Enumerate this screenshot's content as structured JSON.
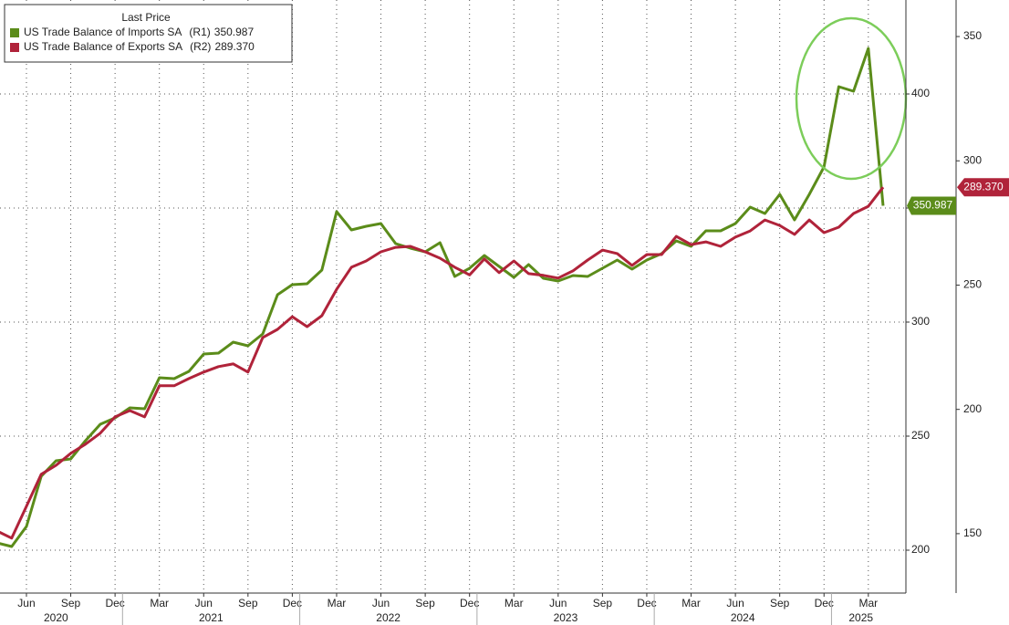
{
  "chart_data": {
    "type": "line",
    "legend_title": "Last Price",
    "categories": [
      null,
      null,
      "Jun",
      null,
      null,
      "Sep",
      null,
      null,
      "Dec",
      null,
      null,
      "Mar",
      null,
      null,
      "Jun",
      null,
      null,
      "Sep",
      null,
      null,
      "Dec",
      null,
      null,
      "Mar",
      null,
      null,
      "Jun",
      null,
      null,
      "Sep",
      null,
      null,
      "Dec",
      null,
      null,
      "Mar",
      null,
      null,
      "Jun",
      null,
      null,
      "Sep",
      null,
      null,
      "Dec",
      null,
      null,
      "Mar",
      null,
      null,
      "Jun",
      null,
      null,
      "Sep",
      null,
      null,
      "Dec",
      null,
      null,
      "Mar",
      null
    ],
    "years": [
      "2020",
      "2021",
      "2022",
      "2023",
      "2024",
      "2025"
    ],
    "series": [
      {
        "name": "US Trade Balance of Imports SA",
        "axis_name": "(R1)",
        "color": "#5b8c1a",
        "axis": "y",
        "values": [
          203.2,
          201.6,
          210.4,
          232.4,
          239.2,
          240,
          248,
          255.2,
          258,
          262.4,
          262,
          275.6,
          275.2,
          278.4,
          286,
          286.4,
          291.2,
          289.6,
          294.8,
          312,
          316.4,
          316.8,
          322.8,
          348.4,
          340.4,
          342,
          343.2,
          334.4,
          332.4,
          330.8,
          334.8,
          320,
          323.6,
          329.2,
          324.4,
          319.6,
          325.2,
          319.2,
          318,
          320.4,
          320,
          323.6,
          327.2,
          323.2,
          327.2,
          330,
          335.6,
          333.2,
          340,
          340,
          343.2,
          350.4,
          347.6,
          356,
          344.8,
          356,
          368,
          403.2,
          401.2,
          420,
          350.987
        ]
      },
      {
        "name": "US Trade Balance of Exports SA",
        "axis_name": "(R2)",
        "color": "#b0233a",
        "axis": "y2",
        "values": [
          151.1,
          148.2,
          161,
          173.9,
          177.5,
          182.3,
          186,
          190.4,
          197,
          199.5,
          197,
          209.5,
          209.5,
          212.4,
          215,
          217.2,
          218.3,
          215,
          228.9,
          232.2,
          237.3,
          233.3,
          237.7,
          248.3,
          257.2,
          259.7,
          263.4,
          265.2,
          265.6,
          263.4,
          260.8,
          257.2,
          254.1,
          260.5,
          255,
          259.7,
          254.6,
          253.9,
          252.8,
          255.7,
          260.1,
          264.1,
          262.7,
          257.9,
          262.3,
          262.3,
          269.6,
          266.3,
          267.4,
          265.6,
          269.3,
          271.8,
          276.2,
          274,
          270.4,
          276.2,
          271.1,
          273.3,
          278.8,
          281.7,
          289.37
        ],
        "value_labels": [
          null,
          null,
          null,
          null,
          null,
          null,
          null,
          null,
          null,
          null,
          null,
          null,
          null,
          null,
          null,
          null,
          null,
          null,
          null,
          null,
          null,
          null,
          null,
          null,
          null,
          null,
          null,
          null,
          null,
          null,
          null,
          null,
          null,
          null,
          null,
          null,
          null,
          null,
          null,
          null,
          null,
          null,
          null,
          null,
          null,
          null,
          null,
          null,
          null,
          null,
          null,
          null,
          null,
          null,
          null,
          null,
          null,
          null,
          null,
          null,
          "289.370"
        ]
      }
    ],
    "ylim": [
      181.2,
      441.2
    ],
    "yticks": [
      200,
      250,
      300,
      350,
      400
    ],
    "y2lim": [
      126.1,
      364.7
    ],
    "y2ticks": [
      150,
      200,
      250,
      300,
      350
    ],
    "grid": true,
    "legend": "top-left"
  }
}
